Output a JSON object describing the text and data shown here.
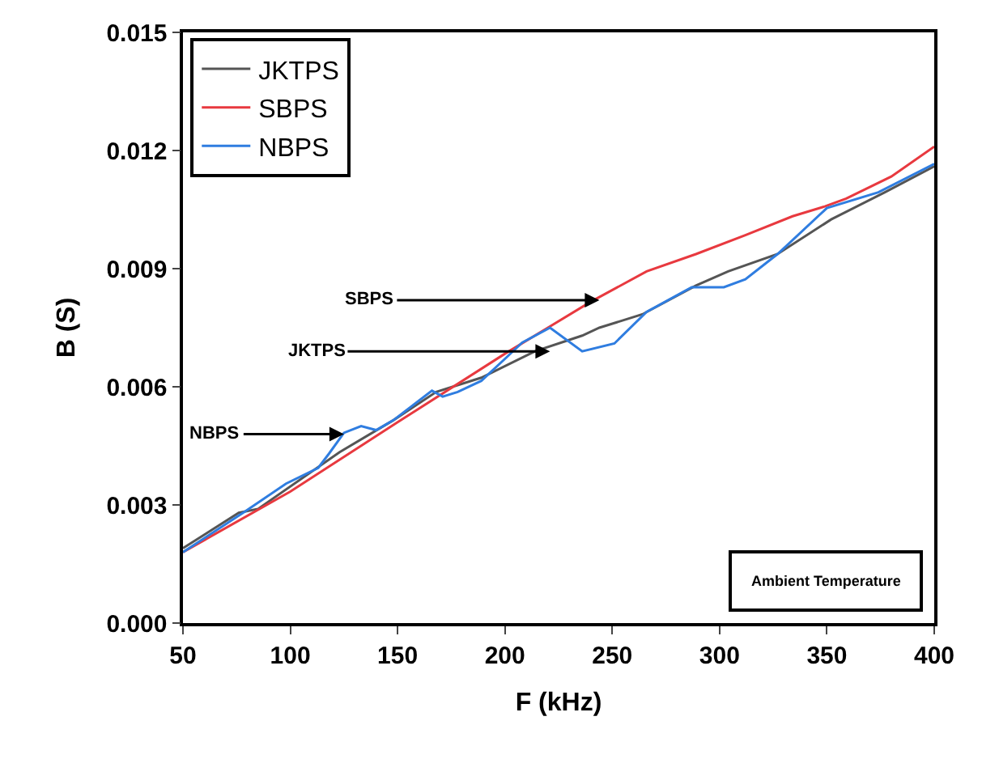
{
  "chart_data": {
    "type": "line",
    "xlabel": "F (kHz)",
    "ylabel": "B (S)",
    "xlim": [
      50,
      400
    ],
    "xticks": [
      50,
      100,
      150,
      200,
      250,
      300,
      350,
      400
    ],
    "ylim": [
      0,
      0.015
    ],
    "yticks": [
      {
        "value": 0,
        "label": "0.000"
      },
      {
        "value": 0.003,
        "label": "0.003"
      },
      {
        "value": 0.006,
        "label": "0.006"
      },
      {
        "value": 0.009,
        "label": "0.009"
      },
      {
        "value": 0.012,
        "label": "0.012"
      },
      {
        "value": 0.015,
        "label": "0.015"
      }
    ],
    "legend": "top left",
    "marker": "none",
    "line_style": "solid",
    "series": [
      {
        "name": "JKTPS",
        "color": "#555555",
        "x": [
          50,
          76,
          85,
          123,
          148,
          168,
          189,
          214,
          236,
          244,
          264,
          289,
          304,
          327,
          352,
          377,
          400
        ],
        "values": [
          0.0019,
          0.0028,
          0.0029,
          0.00434,
          0.00515,
          0.00587,
          0.00623,
          0.0069,
          0.0073,
          0.0075,
          0.00784,
          0.00857,
          0.00893,
          0.00937,
          0.01025,
          0.01094,
          0.0116
        ]
      },
      {
        "name": "SBPS",
        "color": "#e8393f",
        "x": [
          50,
          100,
          150,
          200,
          220,
          240,
          266,
          289,
          312,
          334,
          349,
          359,
          380,
          400
        ],
        "values": [
          0.0018,
          0.00334,
          0.0051,
          0.00684,
          0.0075,
          0.00816,
          0.00893,
          0.00937,
          0.00985,
          0.01033,
          0.01058,
          0.01078,
          0.01134,
          0.0121
        ]
      },
      {
        "name": "NBPS",
        "color": "#2f7de0",
        "x": [
          50,
          78,
          98,
          113,
          118,
          125,
          133,
          140,
          148,
          166,
          171,
          178,
          189,
          201,
          208,
          221,
          236,
          251,
          266,
          287,
          302,
          312,
          327,
          350,
          374,
          400
        ],
        "values": [
          0.0018,
          0.0028,
          0.00354,
          0.00394,
          0.0043,
          0.00483,
          0.005,
          0.0049,
          0.00515,
          0.0059,
          0.00575,
          0.00587,
          0.00615,
          0.00676,
          0.00712,
          0.0075,
          0.0069,
          0.0071,
          0.0079,
          0.00853,
          0.00853,
          0.00873,
          0.00937,
          0.01054,
          0.01094,
          0.01166
        ]
      }
    ],
    "annotations": [
      {
        "text": "SBPS",
        "x": 244,
        "y": 0.0082
      },
      {
        "text": "JKTPS",
        "x": 221,
        "y": 0.0069
      },
      {
        "text": "NBPS",
        "x": 125,
        "y": 0.0048
      },
      "Ambient Temperature"
    ]
  }
}
